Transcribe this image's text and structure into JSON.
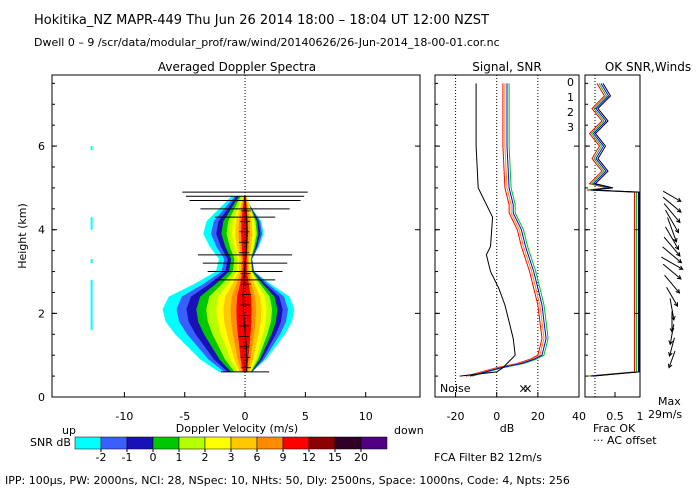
{
  "header": {
    "line1": "Hokitika_NZ  MAPR-449  Thu Jun 26 2014 18:00 – 18:04 UT 12:00 NZST",
    "line2": "Dwell  0 – 9   /scr/data/modular_prof/raw/wind/20140626/26-Jun-2014_18-00-01.cor.nc"
  },
  "footer": {
    "params": "IPP: 100µs,  PW: 2000ns,  NCI:  28,  NSpec: 10, NHts: 50,  Dly: 2500ns,  Space: 1000ns,  Code: 4,  Npts: 256",
    "filter": "FCA Filter B2 12m/s"
  },
  "colors": {
    "bands": [
      "#00ffff",
      "#3a5fff",
      "#1a10b8",
      "#00c800",
      "#b4ff00",
      "#ffff00",
      "#ffc800",
      "#ff8c00",
      "#ff0000",
      "#8b0000",
      "#300028",
      "#500080"
    ],
    "snr0": "#ff0000",
    "snr1": "#ff8c00",
    "snr2": "#00c800",
    "snr3": "#0000ff"
  },
  "chart_data": [
    {
      "type": "heatmap",
      "title": "Averaged Doppler Spectra",
      "xlabel": "Doppler Velocity (m/s)",
      "ylabel": "Height (km)",
      "xlim": [
        -16,
        14.5
      ],
      "ylim": [
        0,
        7.7
      ],
      "xticks": [
        "-10",
        "-5",
        "0",
        "5",
        "10"
      ],
      "xtick_values": [
        -10,
        -5,
        0,
        5,
        10
      ],
      "yticks": [
        "0",
        "2",
        "4",
        "6"
      ],
      "ytick_values": [
        0,
        2,
        4,
        6
      ],
      "dir_left": "up",
      "dir_right": "down",
      "colorbar": {
        "label": "SNR dB",
        "ticks": [
          "-2",
          "-1",
          "0",
          "1",
          "2",
          "3",
          "6",
          "9",
          "12",
          "15",
          "20"
        ]
      },
      "core_profile": [
        {
          "h": 0.6,
          "w": 0.6
        },
        {
          "h": 0.9,
          "w": 1.2
        },
        {
          "h": 1.2,
          "w": 1.6
        },
        {
          "h": 1.5,
          "w": 2.0
        },
        {
          "h": 1.8,
          "w": 2.3
        },
        {
          "h": 2.1,
          "w": 2.4
        },
        {
          "h": 2.4,
          "w": 2.2
        },
        {
          "h": 2.7,
          "w": 1.4
        },
        {
          "h": 3.0,
          "w": 0.7
        },
        {
          "h": 3.3,
          "w": 0.6
        },
        {
          "h": 3.6,
          "w": 0.9
        },
        {
          "h": 3.9,
          "w": 1.1
        },
        {
          "h": 4.2,
          "w": 1.0
        },
        {
          "h": 4.5,
          "w": 0.6
        },
        {
          "h": 4.8,
          "w": 0.2
        }
      ],
      "error_bars": [
        {
          "h": 0.6,
          "half": 2.0
        },
        {
          "h": 2.8,
          "half": 2.5
        },
        {
          "h": 3.0,
          "half": 3.1
        },
        {
          "h": 3.2,
          "half": 3.5
        },
        {
          "h": 3.4,
          "half": 3.9
        },
        {
          "h": 4.3,
          "half": 2.5
        },
        {
          "h": 4.5,
          "half": 3.7
        },
        {
          "h": 4.7,
          "half": 4.6
        },
        {
          "h": 4.8,
          "half": 4.9
        },
        {
          "h": 4.9,
          "half": 5.2
        }
      ]
    },
    {
      "type": "line",
      "title": "Signal, SNR",
      "xlabel": "dB",
      "xlim": [
        -30,
        40
      ],
      "xticks": [
        "-20",
        "0",
        "20",
        "40"
      ],
      "xtick_values": [
        -20,
        0,
        20,
        40
      ],
      "noise_label": "Noise",
      "legend": [
        "0",
        "1",
        "2",
        "3"
      ],
      "series": [
        {
          "name": "0",
          "x": [
            3,
            3,
            4,
            6,
            6,
            10,
            12,
            14,
            16,
            18,
            20,
            21,
            22,
            20,
            16,
            10,
            0,
            -15
          ],
          "y": [
            7.5,
            6.0,
            5.0,
            4.6,
            4.4,
            4.0,
            3.6,
            3.3,
            3.0,
            2.6,
            2.2,
            1.8,
            1.4,
            1.0,
            0.9,
            0.8,
            0.7,
            0.5
          ]
        },
        {
          "name": "1",
          "x": [
            4,
            4,
            5,
            7,
            7,
            11,
            13,
            15,
            17,
            19,
            21,
            22,
            23,
            21,
            17,
            11,
            1,
            -14
          ],
          "y": [
            7.5,
            6.0,
            5.0,
            4.6,
            4.4,
            4.0,
            3.6,
            3.3,
            3.0,
            2.6,
            2.2,
            1.8,
            1.4,
            1.0,
            0.9,
            0.8,
            0.7,
            0.5
          ]
        },
        {
          "name": "2",
          "x": [
            6,
            6,
            7,
            9,
            9,
            13,
            15,
            17,
            19,
            21,
            23,
            24,
            25,
            23,
            19,
            13,
            3,
            -12
          ],
          "y": [
            7.5,
            6.0,
            5.0,
            4.6,
            4.4,
            4.0,
            3.6,
            3.3,
            3.0,
            2.6,
            2.2,
            1.8,
            1.4,
            1.0,
            0.9,
            0.8,
            0.7,
            0.5
          ]
        },
        {
          "name": "3",
          "x": [
            5,
            5,
            6,
            8,
            8,
            12,
            14,
            16,
            18,
            20,
            22,
            23,
            24,
            22,
            18,
            12,
            2,
            -13
          ],
          "y": [
            7.5,
            6.0,
            5.0,
            4.6,
            4.4,
            4.0,
            3.6,
            3.3,
            3.0,
            2.6,
            2.2,
            1.8,
            1.4,
            1.0,
            0.9,
            0.8,
            0.7,
            0.5
          ]
        },
        {
          "name": "signal",
          "x": [
            -10,
            -10,
            -9,
            -6,
            -2,
            -3,
            -5,
            -3,
            1,
            4,
            6,
            8,
            9,
            7,
            5,
            3,
            0,
            -18
          ],
          "y": [
            7.5,
            6.0,
            5.0,
            4.7,
            4.3,
            3.6,
            3.4,
            3.0,
            2.6,
            2.2,
            1.8,
            1.4,
            1.0,
            0.9,
            0.8,
            0.7,
            0.6,
            0.5
          ]
        }
      ],
      "noise_markers": [
        {
          "x": 13,
          "color": "red"
        },
        {
          "x": 15,
          "color": "blue"
        }
      ]
    },
    {
      "type": "line",
      "title": "OK SNR,Winds",
      "xlim": [
        -0.1,
        1.0
      ],
      "xticks": [
        "0.5",
        "1"
      ],
      "xtick_values": [
        0.5,
        1.0
      ],
      "frac_label": "Frac OK",
      "offset_label": "··· AC offset",
      "max_label": "Max",
      "max_value": "29m/s",
      "series": [
        {
          "name": "frac",
          "x": [
            0.2,
            0.35,
            0.1,
            0.3,
            0.05,
            0.25,
            0.1,
            0.3,
            0.05,
            0.4,
            0.0,
            0.95,
            0.95,
            0.95,
            0.95,
            0.95,
            0.0
          ],
          "y": [
            7.5,
            7.2,
            6.9,
            6.6,
            6.3,
            6.0,
            5.7,
            5.4,
            5.1,
            5.0,
            4.95,
            4.9,
            4.0,
            3.0,
            2.0,
            0.6,
            0.5
          ]
        }
      ],
      "winds": [
        {
          "h": 0.9,
          "deg": 250,
          "len": 0.4
        },
        {
          "h": 1.2,
          "deg": 255,
          "len": 0.5
        },
        {
          "h": 1.5,
          "deg": 260,
          "len": 0.6
        },
        {
          "h": 1.8,
          "deg": 270,
          "len": 0.6
        },
        {
          "h": 2.1,
          "deg": 280,
          "len": 0.7
        },
        {
          "h": 2.4,
          "deg": 300,
          "len": 0.7
        },
        {
          "h": 2.7,
          "deg": 310,
          "len": 0.8
        },
        {
          "h": 3.0,
          "deg": 320,
          "len": 0.8
        },
        {
          "h": 3.2,
          "deg": 330,
          "len": 0.9
        },
        {
          "h": 3.4,
          "deg": 320,
          "len": 0.9
        },
        {
          "h": 3.6,
          "deg": 310,
          "len": 0.9
        },
        {
          "h": 3.8,
          "deg": 300,
          "len": 1.0
        },
        {
          "h": 4.0,
          "deg": 290,
          "len": 1.0
        },
        {
          "h": 4.2,
          "deg": 300,
          "len": 1.0
        },
        {
          "h": 4.4,
          "deg": 310,
          "len": 0.9
        },
        {
          "h": 4.6,
          "deg": 320,
          "len": 0.8
        },
        {
          "h": 4.8,
          "deg": 330,
          "len": 0.6
        }
      ]
    }
  ]
}
